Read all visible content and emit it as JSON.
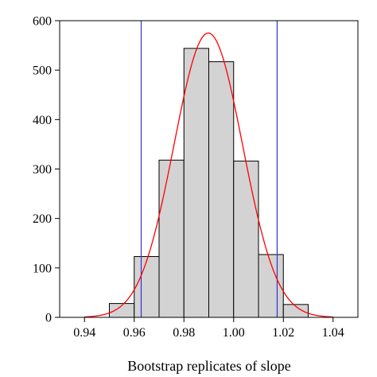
{
  "chart_data": {
    "type": "bar",
    "title": "",
    "xlabel": "Bootstrap replicates of slope",
    "ylabel": "",
    "xlim": [
      0.93,
      1.05
    ],
    "ylim": [
      0,
      600
    ],
    "x_ticks": [
      0.94,
      0.96,
      0.98,
      1.0,
      1.02,
      1.04
    ],
    "x_tick_labels": [
      "0.94",
      "0.96",
      "0.98",
      "1.00",
      "1.02",
      "1.04"
    ],
    "y_ticks": [
      0,
      100,
      200,
      300,
      400,
      500,
      600
    ],
    "y_tick_labels": [
      "0",
      "100",
      "200",
      "300",
      "400",
      "500",
      "600"
    ],
    "grid": false,
    "legend": "none",
    "bins": [
      {
        "start": 0.95,
        "end": 0.96,
        "count": 28
      },
      {
        "start": 0.96,
        "end": 0.97,
        "count": 123
      },
      {
        "start": 0.97,
        "end": 0.98,
        "count": 318
      },
      {
        "start": 0.98,
        "end": 0.99,
        "count": 544
      },
      {
        "start": 0.99,
        "end": 1.0,
        "count": 517
      },
      {
        "start": 1.0,
        "end": 1.01,
        "count": 316
      },
      {
        "start": 1.01,
        "end": 1.02,
        "count": 127
      },
      {
        "start": 1.02,
        "end": 1.03,
        "count": 26
      }
    ],
    "normal_curve": {
      "mean": 0.9898,
      "sd": 0.0138,
      "peak": 575
    },
    "vertical_lines": [
      0.9628,
      1.0175
    ],
    "colors": {
      "bar_fill": "#d3d3d3",
      "bar_stroke": "#000000",
      "curve": "#ff0000",
      "vline": "#3333cc",
      "axis": "#000000"
    }
  }
}
